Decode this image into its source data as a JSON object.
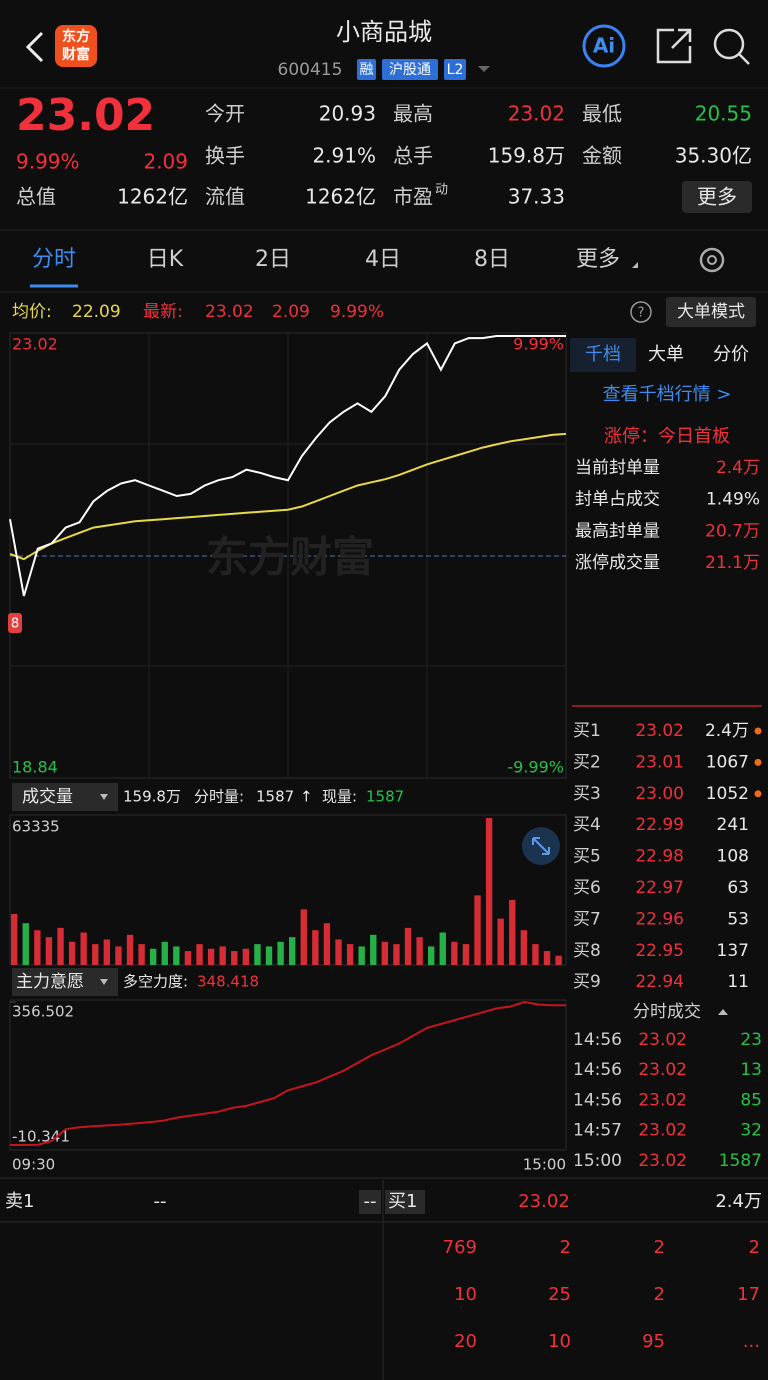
{
  "header": {
    "logo": [
      "东方",
      "财富"
    ],
    "title": "小商品城",
    "code": "600415",
    "tags": [
      "融",
      "沪股通",
      "L2"
    ],
    "ai_button": "Ai"
  },
  "quote": {
    "price": "23.02",
    "change_pct": "9.99%",
    "change": "2.09",
    "stats": [
      {
        "label": "今开",
        "value": "20.93"
      },
      {
        "label": "最高",
        "value": "23.02",
        "tone": "up"
      },
      {
        "label": "最低",
        "value": "20.55",
        "tone": "down"
      },
      {
        "label": "换手",
        "value": "2.91%"
      },
      {
        "label": "总手",
        "value": "159.8万"
      },
      {
        "label": "金额",
        "value": "35.30亿"
      },
      {
        "label": "总值",
        "value": "1262亿"
      },
      {
        "label": "流值",
        "value": "1262亿"
      },
      {
        "label": "市盈",
        "sup": "动",
        "value": "37.33"
      }
    ],
    "more_button": "更多"
  },
  "tabs": [
    "分时",
    "日K",
    "2日",
    "4日",
    "8日",
    "更多"
  ],
  "info_bar": {
    "avg_label": "均价:",
    "avg": "22.09",
    "latest_label": "最新:",
    "latest": "23.02",
    "change": "2.09",
    "pct": "9.99%",
    "mode_button": "大单模式"
  },
  "intraday": {
    "ylim": [
      18.84,
      23.02
    ],
    "y2lim": [
      -9.99,
      9.99
    ],
    "y2ticks": [
      {
        "value": -9.99,
        "label": "-9.99%"
      },
      {
        "value": 9.99,
        "label": "9.99%"
      }
    ],
    "watermark": "东方财富",
    "marker": "8",
    "price_color": "#ffffff",
    "avg_color": "#e8d84a",
    "price": [
      21.28,
      20.55,
      21.0,
      21.05,
      21.2,
      21.25,
      21.45,
      21.55,
      21.62,
      21.65,
      21.6,
      21.55,
      21.5,
      21.52,
      21.6,
      21.65,
      21.68,
      21.75,
      21.72,
      21.68,
      21.65,
      21.88,
      22.05,
      22.2,
      22.3,
      22.38,
      22.3,
      22.45,
      22.7,
      22.85,
      22.95,
      22.7,
      22.95,
      23.0,
      23.0,
      23.02,
      23.02,
      23.02,
      23.02,
      23.02,
      23.02
    ],
    "avg": [
      20.95,
      20.9,
      20.98,
      21.05,
      21.1,
      21.15,
      21.2,
      21.22,
      21.24,
      21.26,
      21.27,
      21.28,
      21.29,
      21.3,
      21.31,
      21.32,
      21.33,
      21.34,
      21.35,
      21.36,
      21.37,
      21.4,
      21.45,
      21.5,
      21.55,
      21.6,
      21.63,
      21.66,
      21.7,
      21.75,
      21.8,
      21.84,
      21.88,
      21.92,
      21.96,
      21.99,
      22.02,
      22.04,
      22.06,
      22.08,
      22.09
    ]
  },
  "side_panel": {
    "tabs": [
      "千档",
      "大单",
      "分价"
    ],
    "depth_link": "查看千档行情 >",
    "limit_up": "涨停：今日首板",
    "rows": [
      {
        "label": "当前封单量",
        "value": "2.4万",
        "tone": "up"
      },
      {
        "label": "封单占成交",
        "value": "1.49%"
      },
      {
        "label": "最高封单量",
        "value": "20.7万",
        "tone": "up"
      },
      {
        "label": "涨停成交量",
        "value": "21.1万",
        "tone": "up"
      }
    ]
  },
  "order_book": [
    {
      "label": "买1",
      "price": "23.02",
      "volume": "2.4万",
      "dot": true
    },
    {
      "label": "买2",
      "price": "23.01",
      "volume": "1067",
      "dot": true
    },
    {
      "label": "买3",
      "price": "23.00",
      "volume": "1052",
      "dot": true
    },
    {
      "label": "买4",
      "price": "22.99",
      "volume": "241"
    },
    {
      "label": "买5",
      "price": "22.98",
      "volume": "108"
    },
    {
      "label": "买6",
      "price": "22.97",
      "volume": "63"
    },
    {
      "label": "买7",
      "price": "22.96",
      "volume": "53"
    },
    {
      "label": "买8",
      "price": "22.95",
      "volume": "137"
    },
    {
      "label": "买9",
      "price": "22.94",
      "volume": "11"
    }
  ],
  "volume": {
    "menu": "成交量",
    "total": "159.8万",
    "interval_label": "分时量:",
    "interval": "1587",
    "arrow": "↑",
    "current_label": "现量:",
    "current": "1587",
    "ylim": [
      0,
      63335
    ],
    "yticks": [
      63335
    ],
    "values": [
      22000,
      18000,
      15000,
      12000,
      16000,
      10000,
      14000,
      9000,
      11000,
      8000,
      13000,
      9000,
      7000,
      10000,
      8000,
      6000,
      9000,
      7000,
      8000,
      6000,
      7000,
      9000,
      8000,
      10000,
      12000,
      24000,
      15000,
      18000,
      11000,
      9000,
      8000,
      13000,
      10000,
      9000,
      16000,
      12000,
      8000,
      14000,
      10000,
      9000,
      30000,
      63335,
      20000,
      28000,
      15000,
      9000,
      6000,
      4000
    ]
  },
  "force": {
    "menu": "主力意愿",
    "label": "多空力度:",
    "value": "348.418",
    "ylim": [
      -10.341,
      356.502
    ],
    "yticks": [
      -10.341,
      356.502
    ],
    "color": "#c4141e",
    "values": [
      -10.341,
      -10.341,
      -10,
      0,
      30,
      35,
      38,
      40,
      42,
      45,
      48,
      52,
      60,
      65,
      70,
      75,
      85,
      90,
      100,
      110,
      130,
      140,
      150,
      165,
      180,
      200,
      220,
      235,
      250,
      270,
      290,
      300,
      310,
      320,
      330,
      340,
      345,
      356.502,
      350,
      348,
      348.418
    ],
    "x_labels": [
      "09:30",
      "15:00"
    ]
  },
  "trades": {
    "title": "分时成交",
    "rows": [
      [
        "14:56",
        "23.02",
        "23"
      ],
      [
        "14:56",
        "23.02",
        "13"
      ],
      [
        "14:56",
        "23.02",
        "85"
      ],
      [
        "14:57",
        "23.02",
        "32"
      ],
      [
        "15:00",
        "23.02",
        "1587"
      ]
    ]
  },
  "bottom": {
    "ask": {
      "label": "卖1",
      "price": "--",
      "volume": "--"
    },
    "bid": {
      "label": "买1",
      "price": "23.02",
      "volume": "2.4万"
    },
    "queue": [
      [
        "769",
        "2",
        "2",
        "2"
      ],
      [
        "10",
        "25",
        "2",
        "17"
      ],
      [
        "20",
        "10",
        "95",
        "..."
      ]
    ]
  }
}
